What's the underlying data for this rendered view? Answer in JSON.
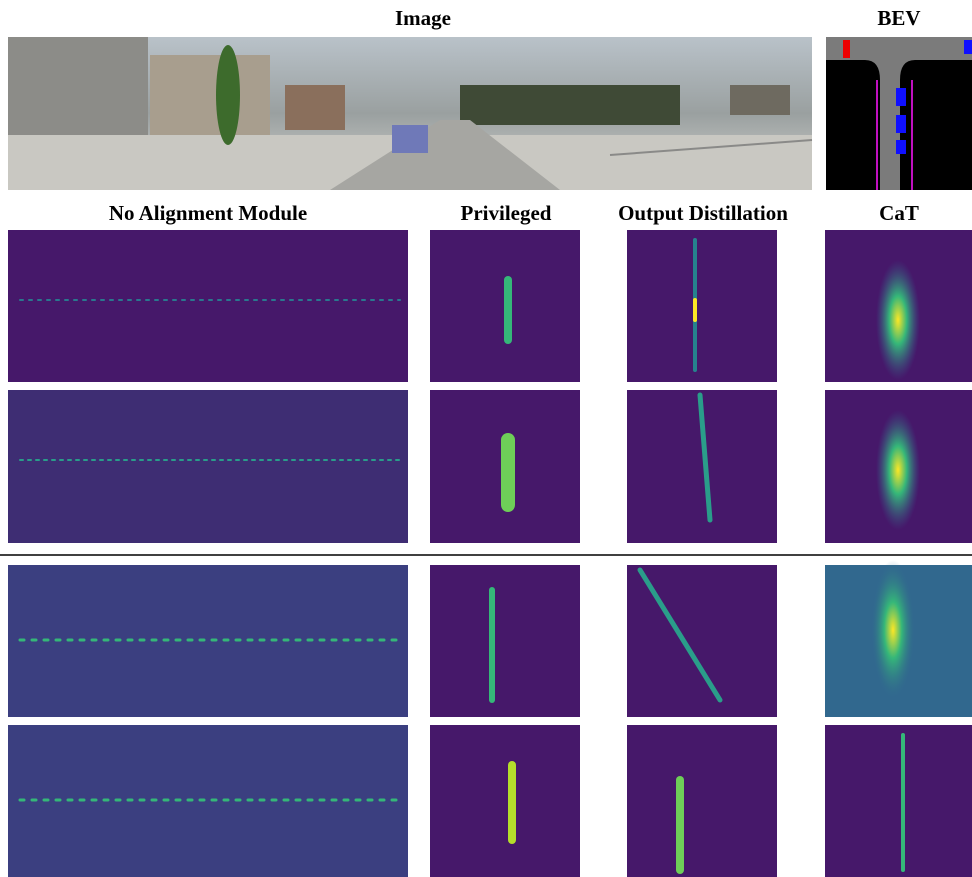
{
  "header": {
    "image": "Image",
    "bev": "BEV"
  },
  "columns": [
    "No Alignment Module",
    "Privileged",
    "Output Distillation",
    "CaT"
  ]
}
